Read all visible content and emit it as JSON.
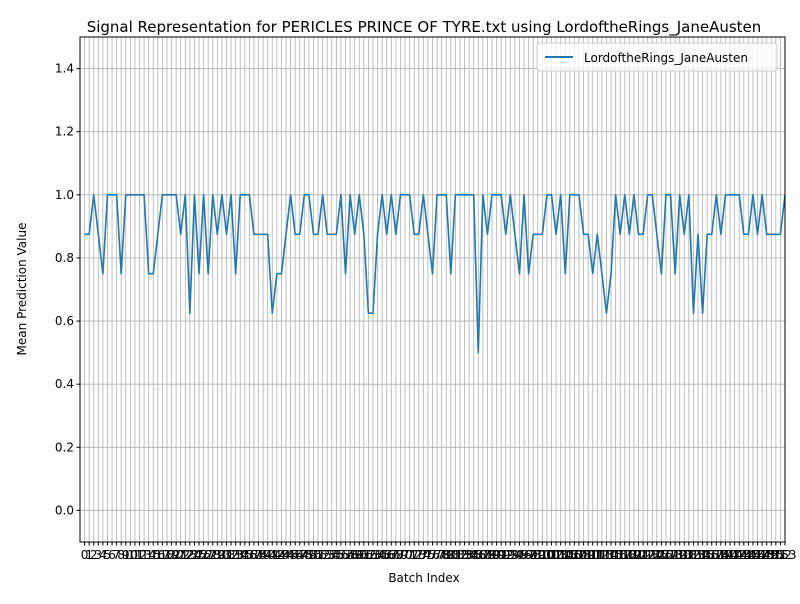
{
  "chart_data": {
    "type": "line",
    "title": "Signal Representation for PERICLES PRINCE OF TYRE.txt using LordoftheRings_JaneAusten",
    "xlabel": "Batch Index",
    "ylabel": "Mean Prediction Value",
    "ylim": [
      -0.1,
      1.5
    ],
    "xlim": [
      -1,
      153
    ],
    "y_ticks": [
      "0.0",
      "0.2",
      "0.4",
      "0.6",
      "0.8",
      "1.0",
      "1.2",
      "1.4"
    ],
    "x_tick_values": [
      0,
      1,
      2,
      3,
      4,
      5,
      6,
      7,
      8,
      9,
      10,
      11,
      12,
      13,
      14,
      15,
      16,
      17,
      18,
      19,
      20,
      21,
      22,
      23,
      24,
      25,
      26,
      27,
      28,
      29,
      30,
      31,
      32,
      33,
      34,
      35,
      36,
      37,
      38,
      39,
      40,
      41,
      42,
      43,
      44,
      45,
      46,
      47,
      48,
      49,
      50,
      51,
      52,
      53,
      54,
      55,
      56,
      57,
      58,
      59,
      60,
      61,
      62,
      63,
      64,
      65,
      66,
      67,
      68,
      69,
      70,
      71,
      72,
      73,
      74,
      75,
      76,
      77,
      78,
      79,
      80,
      81,
      82,
      83,
      84,
      85,
      86,
      87,
      88,
      89,
      90,
      91,
      92,
      93,
      94,
      95,
      96,
      97,
      98,
      99,
      100,
      101,
      102,
      103,
      104,
      105,
      106,
      107,
      108,
      109,
      110,
      111,
      112,
      113,
      114,
      115,
      116,
      117,
      118,
      119,
      120,
      121,
      122,
      123,
      124,
      125,
      126,
      127,
      128,
      129,
      130,
      131,
      132,
      133,
      134,
      135,
      136,
      137,
      138,
      139,
      140,
      141,
      142,
      143,
      144,
      145,
      146,
      147,
      148,
      149,
      150,
      151,
      152,
      153
    ],
    "x_tick_labels": [
      "0",
      "1",
      "2",
      "3",
      "4",
      "5",
      "6",
      "7",
      "8",
      "9",
      "10",
      "11",
      "12",
      "13",
      "14",
      "15",
      "16",
      "17",
      "18",
      "19",
      "20",
      "21",
      "22",
      "23",
      "24",
      "25",
      "26",
      "27",
      "28",
      "29",
      "30",
      "31",
      "32",
      "33",
      "34",
      "35",
      "36",
      "37",
      "38",
      "39",
      "40",
      "41",
      "42",
      "43",
      "44",
      "45",
      "46",
      "47",
      "48",
      "49",
      "50",
      "51",
      "52",
      "53",
      "54",
      "55",
      "56",
      "57",
      "58",
      "59",
      "60",
      "61",
      "62",
      "63",
      "64",
      "65",
      "66",
      "67",
      "68",
      "69",
      "70",
      "71",
      "72",
      "73",
      "74",
      "75",
      "76",
      "77",
      "78",
      "79",
      "80",
      "81",
      "82",
      "83",
      "84",
      "85",
      "86",
      "87",
      "88",
      "89",
      "90",
      "91",
      "92",
      "93",
      "94",
      "95",
      "96",
      "97",
      "98",
      "99",
      "100",
      "101",
      "102",
      "103",
      "104",
      "105",
      "106",
      "107",
      "108",
      "109",
      "110",
      "111",
      "112",
      "113",
      "114",
      "115",
      "116",
      "117",
      "118",
      "119",
      "120",
      "121",
      "122",
      "123",
      "124",
      "125",
      "126",
      "127",
      "128",
      "129",
      "130",
      "131",
      "132",
      "133",
      "134",
      "135",
      "136",
      "137",
      "138",
      "139",
      "140",
      "141",
      "142",
      "143",
      "144",
      "145",
      "146",
      "147",
      "148",
      "149",
      "150",
      "151",
      "152",
      "153"
    ],
    "grid": true,
    "legend_position": "top-right",
    "series": [
      {
        "name": "LordoftheRings_JaneAusten",
        "color": "#1f77b4",
        "values": [
          0.875,
          0.875,
          1.0,
          0.875,
          0.75,
          1.0,
          1.0,
          1.0,
          0.75,
          1.0,
          1.0,
          1.0,
          1.0,
          1.0,
          0.75,
          0.75,
          0.875,
          1.0,
          1.0,
          1.0,
          1.0,
          0.875,
          1.0,
          0.625,
          1.0,
          0.75,
          1.0,
          0.75,
          1.0,
          0.875,
          1.0,
          0.875,
          1.0,
          0.75,
          1.0,
          1.0,
          1.0,
          0.875,
          0.875,
          0.875,
          0.875,
          0.625,
          0.75,
          0.75,
          0.875,
          1.0,
          0.875,
          0.875,
          1.0,
          1.0,
          0.875,
          0.875,
          1.0,
          0.875,
          0.875,
          0.875,
          1.0,
          0.75,
          1.0,
          0.875,
          1.0,
          0.875,
          0.625,
          0.625,
          0.875,
          1.0,
          0.875,
          1.0,
          0.875,
          1.0,
          1.0,
          1.0,
          0.875,
          0.875,
          1.0,
          0.875,
          0.75,
          1.0,
          1.0,
          1.0,
          0.75,
          1.0,
          1.0,
          1.0,
          1.0,
          1.0,
          0.5,
          1.0,
          0.875,
          1.0,
          1.0,
          1.0,
          0.875,
          1.0,
          0.875,
          0.75,
          1.0,
          0.75,
          0.875,
          0.875,
          0.875,
          1.0,
          1.0,
          0.875,
          1.0,
          0.75,
          1.0,
          1.0,
          1.0,
          0.875,
          0.875,
          0.75,
          0.875,
          0.75,
          0.625,
          0.75,
          1.0,
          0.875,
          1.0,
          0.875,
          1.0,
          0.875,
          0.875,
          1.0,
          1.0,
          0.875,
          0.75,
          1.0,
          1.0,
          0.75,
          1.0,
          0.875,
          1.0,
          0.625,
          0.875,
          0.625,
          0.875,
          0.875,
          1.0,
          0.875,
          1.0,
          1.0,
          1.0,
          1.0,
          0.875,
          0.875,
          1.0,
          0.875,
          1.0,
          0.875,
          0.875,
          0.875,
          0.875,
          1.0
        ]
      }
    ]
  }
}
